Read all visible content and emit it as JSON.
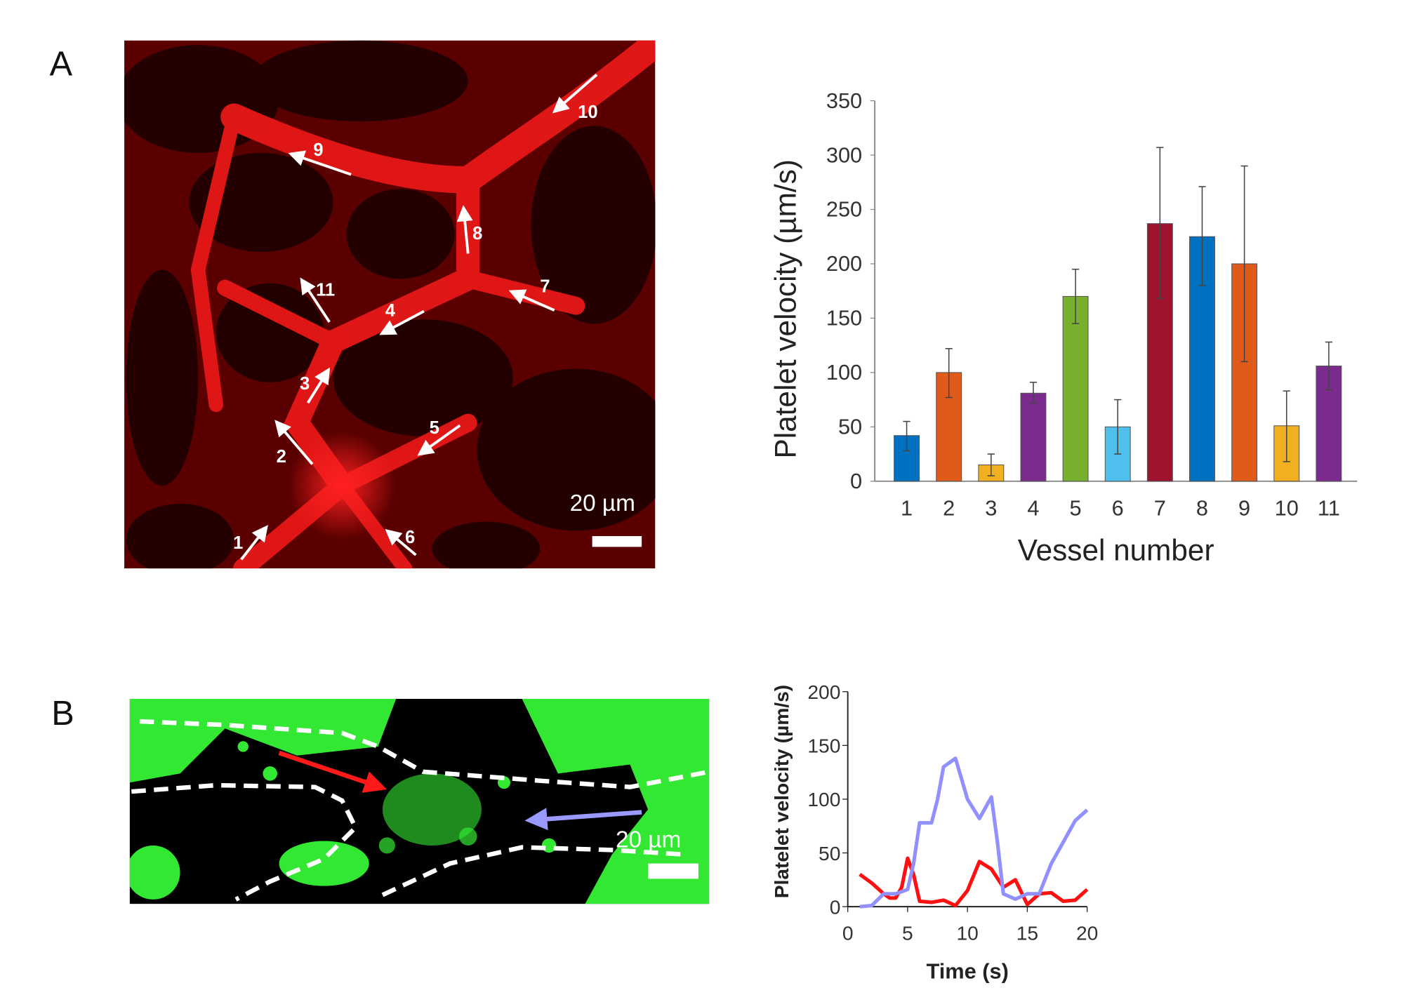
{
  "panels": {
    "a_label": "A",
    "b_label": "B"
  },
  "micrograph_a": {
    "scale_label": "20 µm",
    "arrow_labels": [
      "1",
      "2",
      "3",
      "4",
      "5",
      "6",
      "7",
      "8",
      "9",
      "10",
      "11"
    ],
    "colors": {
      "background": "#3a0000",
      "vessel": "#e01010",
      "arrow": "#ffffff"
    }
  },
  "micrograph_b": {
    "scale_label": "20 µm",
    "colors": {
      "background": "#000000",
      "platelets": "#33e833",
      "arrow_1": "#ff1a1a",
      "arrow_2": "#9999ff",
      "outline": "#ffffff"
    }
  },
  "chart_data": [
    {
      "type": "bar",
      "title": "",
      "xlabel": "Vessel number",
      "ylabel": "Platelet velocity (µm/s)",
      "ylim": [
        0,
        350
      ],
      "yticks": [
        0,
        50,
        100,
        150,
        200,
        250,
        300,
        350
      ],
      "categories": [
        "1",
        "2",
        "3",
        "4",
        "5",
        "6",
        "7",
        "8",
        "9",
        "10",
        "11"
      ],
      "values": [
        42,
        100,
        15,
        81,
        170,
        50,
        237,
        225,
        200,
        51,
        106
      ],
      "error_low": [
        28,
        77,
        5,
        72,
        145,
        25,
        168,
        180,
        110,
        18,
        84
      ],
      "error_high": [
        55,
        122,
        25,
        91,
        195,
        75,
        307,
        271,
        290,
        83,
        128
      ],
      "colors": [
        "#0070c0",
        "#e05a1a",
        "#f0b020",
        "#7b2a8e",
        "#77b02e",
        "#4fc0ee",
        "#a0132f",
        "#0070c0",
        "#e05a1a",
        "#f0b020",
        "#7b2a8e"
      ],
      "grid": false
    },
    {
      "type": "line",
      "title": "",
      "xlabel": "Time (s)",
      "ylabel": "Platelet velocity (µm/s)",
      "xlim": [
        0,
        20
      ],
      "ylim": [
        0,
        200
      ],
      "xticks": [
        0,
        5,
        10,
        15,
        20
      ],
      "yticks": [
        0,
        50,
        100,
        150,
        200
      ],
      "grid": false,
      "series": [
        {
          "color": "#ff1010",
          "x": [
            1,
            2,
            3,
            3.5,
            4,
            4.5,
            5,
            5.5,
            6,
            7,
            8,
            9,
            10,
            11,
            12,
            13,
            14,
            15,
            16,
            17,
            18,
            19,
            20
          ],
          "y": [
            30,
            22,
            12,
            8,
            8,
            18,
            45,
            30,
            5,
            4,
            6,
            1,
            15,
            42,
            35,
            18,
            25,
            2,
            12,
            13,
            5,
            6,
            16
          ]
        },
        {
          "color": "#9090ff",
          "x": [
            1,
            2,
            3,
            4,
            5,
            5.5,
            6,
            7,
            7.5,
            8,
            9,
            10,
            11,
            12,
            12.5,
            13,
            14,
            15,
            16,
            17,
            18,
            19,
            20
          ],
          "y": [
            0,
            1,
            12,
            12,
            16,
            40,
            78,
            78,
            100,
            130,
            138,
            100,
            82,
            102,
            60,
            12,
            7,
            12,
            12,
            40,
            60,
            80,
            90
          ]
        }
      ]
    }
  ]
}
